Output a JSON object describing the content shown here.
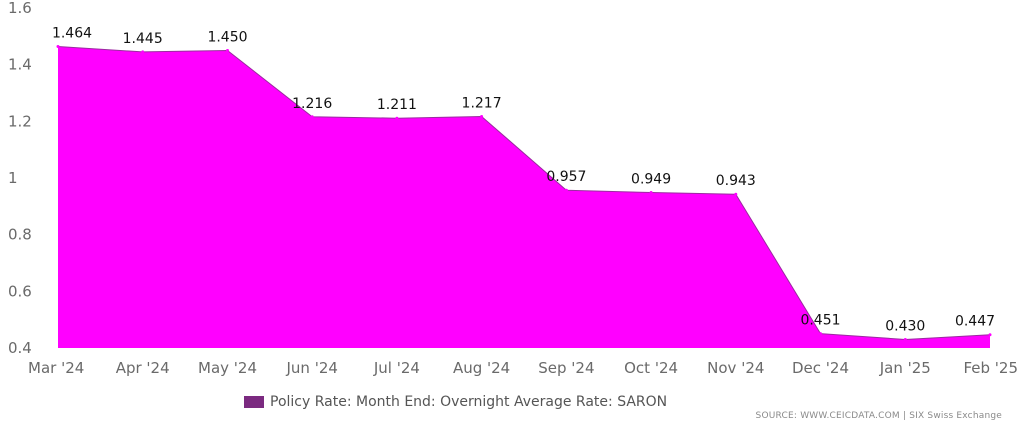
{
  "chart_data": {
    "type": "area",
    "categories": [
      "Mar '24",
      "Apr '24",
      "May '24",
      "Jun '24",
      "Jul '24",
      "Aug '24",
      "Sep '24",
      "Oct '24",
      "Nov '24",
      "Dec '24",
      "Jan '25",
      "Feb '25"
    ],
    "series": [
      {
        "name": "Policy Rate: Month End: Overnight Average Rate: SARON",
        "values": [
          1.464,
          1.445,
          1.45,
          1.216,
          1.211,
          1.217,
          0.957,
          0.949,
          0.943,
          0.451,
          0.43,
          0.447
        ],
        "labels": [
          "1.464",
          "1.445",
          "1.450",
          "1.216",
          "1.211",
          "1.217",
          "0.957",
          "0.949",
          "0.943",
          "0.451",
          "0.430",
          "0.447"
        ],
        "color": "#ff00ff",
        "legend_color": "#7b2a80"
      }
    ],
    "y_ticks": [
      "0.4",
      "0.6",
      "0.8",
      "1",
      "1.2",
      "1.4",
      "1.6"
    ],
    "ylim": [
      0.4,
      1.6
    ],
    "grid": false,
    "legend_position": "bottom",
    "source": "SOURCE: WWW.CEICDATA.COM | SIX Swiss Exchange"
  }
}
